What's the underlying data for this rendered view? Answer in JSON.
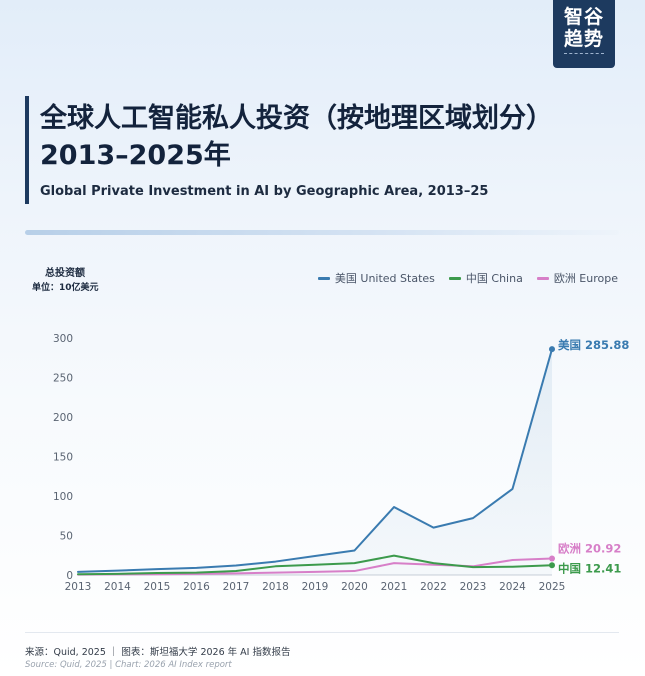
{
  "brand": {
    "line1": "智谷",
    "line2": "趋势"
  },
  "title_zh": "全球人工智能私人投资（按地理区域划分）2013–2025年",
  "title_en": "Global Private Investment in AI by Geographic Area, 2013–25",
  "ylabel": "总投资额",
  "unit": "单位：10亿美元",
  "footer": {
    "source_zh": "来源：Quid, 2025 ｜ 图表：斯坦福大学 2026 年 AI 指数报告",
    "source_en": "Source: Quid, 2025 | Chart: 2026 AI Index report"
  },
  "chart_data": {
    "type": "line",
    "x": [
      2013,
      2014,
      2015,
      2016,
      2017,
      2018,
      2019,
      2020,
      2021,
      2022,
      2023,
      2024,
      2025
    ],
    "ylim": [
      0,
      300
    ],
    "yticks": [
      0,
      50,
      100,
      150,
      200,
      250,
      300
    ],
    "grid": false,
    "legend_position": "top-right",
    "series": [
      {
        "name": "美国 United States",
        "color": "#3a7bb0",
        "values": [
          4,
          5.5,
          7.5,
          9,
          12,
          17,
          24,
          31,
          86,
          60,
          72,
          109,
          285.88
        ],
        "end_label": "美国 285.88",
        "area_fill": true
      },
      {
        "name": "中国 China",
        "color": "#3c9a4c",
        "values": [
          1,
          1.5,
          2.5,
          3,
          5,
          11,
          13,
          15,
          24.5,
          15,
          10,
          10.5,
          12.41
        ],
        "end_label": "中国 12.41"
      },
      {
        "name": "欧洲 Europe",
        "color": "#d77fc8",
        "values": [
          0.5,
          0.8,
          1,
          1.5,
          2,
          3,
          4,
          5,
          15,
          13,
          11,
          19,
          20.92
        ],
        "end_label": "欧洲 20.92"
      }
    ]
  }
}
